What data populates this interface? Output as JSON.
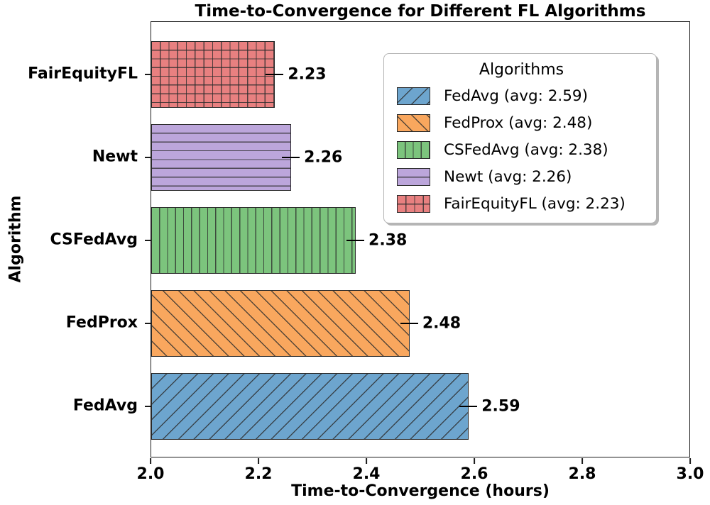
{
  "chart_data": {
    "type": "bar",
    "orientation": "horizontal",
    "title": "Time-to-Convergence for Different FL Algorithms",
    "xlabel": "Time-to-Convergence (hours)",
    "ylabel": "Algorithm",
    "xlim": [
      2.0,
      3.0
    ],
    "xticks": [
      "2.0",
      "2.2",
      "2.4",
      "2.6",
      "2.8",
      "3.0"
    ],
    "grid": false,
    "categories": [
      "FedAvg",
      "FedProx",
      "CSFedAvg",
      "Newt",
      "FairEquityFL"
    ],
    "values": [
      2.59,
      2.48,
      2.38,
      2.26,
      2.23
    ],
    "bar_labels": [
      "2.59",
      "2.48",
      "2.38",
      "2.26",
      "2.23"
    ],
    "bar_colors": [
      "#6da5ce",
      "#f9a75e",
      "#7cc47d",
      "#bca6db",
      "#e88080"
    ],
    "hatches": [
      "/",
      "\\",
      "|",
      "-",
      "+"
    ],
    "category_order_top_to_bottom": [
      "FairEquityFL",
      "Newt",
      "CSFedAvg",
      "FedProx",
      "FedAvg"
    ],
    "legend": {
      "title": "Algorithms",
      "position": "upper right",
      "entries": [
        {
          "label": "FedAvg (avg: 2.59)",
          "color": "#6da5ce",
          "hatch": "/"
        },
        {
          "label": "FedProx (avg: 2.48)",
          "color": "#f9a75e",
          "hatch": "\\"
        },
        {
          "label": "CSFedAvg (avg: 2.38)",
          "color": "#7cc47d",
          "hatch": "|"
        },
        {
          "label": "Newt (avg: 2.26)",
          "color": "#bca6db",
          "hatch": "-"
        },
        {
          "label": "FairEquityFL (avg: 2.23)",
          "color": "#e88080",
          "hatch": "+"
        }
      ]
    }
  }
}
